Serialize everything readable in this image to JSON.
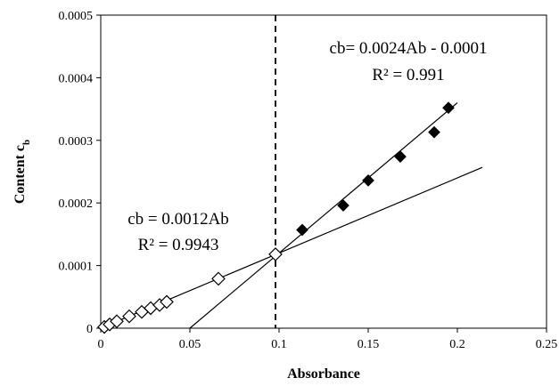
{
  "chart_data": {
    "type": "scatter",
    "xlabel": "Absorbance",
    "ylabel_main": "Content c",
    "ylabel_sub": "b",
    "xlim": [
      0,
      0.25
    ],
    "ylim": [
      0,
      0.0005
    ],
    "x_ticks": [
      "0",
      "0.05",
      "0.1",
      "0.15",
      "0.2",
      "0.25"
    ],
    "y_ticks": [
      "0",
      "0.0001",
      "0.0002",
      "0.0003",
      "0.0004",
      "0.0005"
    ],
    "grid": false,
    "legend": "none",
    "series": [
      {
        "marker": "open-diamond",
        "points": [
          [
            0.002,
            2e-06
          ],
          [
            0.005,
            6e-06
          ],
          [
            0.009,
            1.1e-05
          ],
          [
            0.016,
            1.9e-05
          ],
          [
            0.023,
            2.6e-05
          ],
          [
            0.028,
            3.2e-05
          ],
          [
            0.033,
            3.7e-05
          ],
          [
            0.037,
            4.2e-05
          ],
          [
            0.066,
            7.9e-05
          ],
          [
            0.098,
            0.000118
          ]
        ]
      },
      {
        "marker": "filled-diamond",
        "points": [
          [
            0.113,
            0.000157
          ],
          [
            0.136,
            0.000196
          ],
          [
            0.15,
            0.000236
          ],
          [
            0.168,
            0.000274
          ],
          [
            0.187,
            0.000313
          ],
          [
            0.195,
            0.000352
          ]
        ]
      }
    ],
    "fit_lines": [
      {
        "label": "cb = 0.0012Ab",
        "r2_label": "R² = 0.9943",
        "x_range": [
          0,
          0.214
        ],
        "slope": 0.0012,
        "intercept": 0
      },
      {
        "label": "cb= 0.0024Ab - 0.0001",
        "r2_label": "R² = 0.991",
        "x_range": [
          0.05,
          0.2
        ],
        "slope": 0.0024,
        "intercept": -0.00012
      }
    ],
    "vertical_line": {
      "x": 0.098,
      "style": "dashed"
    }
  }
}
